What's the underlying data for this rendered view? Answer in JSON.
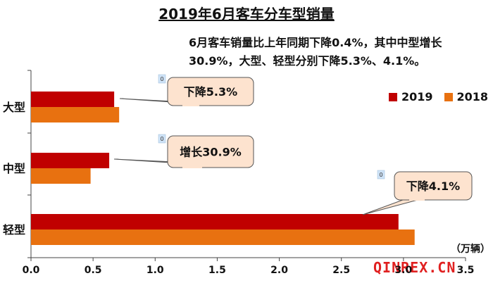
{
  "title": "2019年6月客车分车型销量",
  "note": "6月客车销量比上年同期下降0.4%，其中中型增长30.9%，大型、轻型分别下降5.3%、4.1%。",
  "unit_label": "（万辆）",
  "watermark": "QINREX.CN",
  "colors": {
    "2019": "#c00000",
    "2018": "#e87110"
  },
  "chart_data": {
    "type": "bar",
    "orientation": "horizontal",
    "title": "2019年6月客车分车型销量",
    "categories": [
      "大型",
      "中型",
      "轻型"
    ],
    "series": [
      {
        "name": "2019",
        "values": [
          0.67,
          0.63,
          2.96
        ]
      },
      {
        "name": "2018",
        "values": [
          0.71,
          0.48,
          3.09
        ]
      }
    ],
    "xlim": [
      0,
      3.5
    ],
    "xticks": [
      "0.0",
      "0.5",
      "1.0",
      "1.5",
      "2.0",
      "2.5",
      "3.0",
      "3.5"
    ],
    "xlabel": "（万辆）",
    "legend": "top-right",
    "grid": false,
    "annotations": [
      {
        "category": "大型",
        "text": "下降5.3%"
      },
      {
        "category": "中型",
        "text": "增长30.9%"
      },
      {
        "category": "轻型",
        "text": "下降4.1%"
      }
    ],
    "tag_labels": [
      "0",
      "0",
      "0"
    ]
  }
}
